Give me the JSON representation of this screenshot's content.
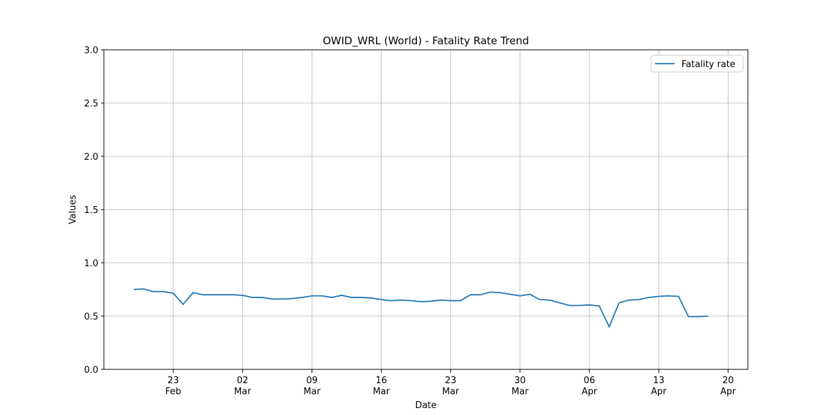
{
  "chart_data": {
    "type": "line",
    "title": "OWID_WRL (World) - Fatality Rate Trend",
    "xlabel": "Date",
    "ylabel": "Values",
    "x": [
      "02-19",
      "02-20",
      "02-21",
      "02-22",
      "02-23",
      "02-24",
      "02-25",
      "02-26",
      "02-27",
      "02-28",
      "03-01",
      "03-02",
      "03-03",
      "03-04",
      "03-05",
      "03-06",
      "03-07",
      "03-08",
      "03-09",
      "03-10",
      "03-11",
      "03-12",
      "03-13",
      "03-14",
      "03-15",
      "03-16",
      "03-17",
      "03-18",
      "03-19",
      "03-20",
      "03-21",
      "03-22",
      "03-23",
      "03-24",
      "03-25",
      "03-26",
      "03-27",
      "03-28",
      "03-29",
      "03-30",
      "03-31",
      "04-01",
      "04-02",
      "04-03",
      "04-04",
      "04-05",
      "04-06",
      "04-07",
      "04-08",
      "04-09",
      "04-10",
      "04-11",
      "04-12",
      "04-13",
      "04-14",
      "04-15",
      "04-16",
      "04-17",
      "04-18"
    ],
    "series": [
      {
        "name": "Fatality rate",
        "color": "#1f77b4",
        "values": [
          0.75,
          0.755,
          0.73,
          0.73,
          0.715,
          0.61,
          0.72,
          0.7,
          0.7,
          0.7,
          0.7,
          0.695,
          0.675,
          0.675,
          0.66,
          0.66,
          0.665,
          0.675,
          0.69,
          0.69,
          0.675,
          0.695,
          0.675,
          0.675,
          0.67,
          0.655,
          0.645,
          0.65,
          0.645,
          0.635,
          0.64,
          0.65,
          0.645,
          0.645,
          0.7,
          0.7,
          0.725,
          0.72,
          0.705,
          0.69,
          0.705,
          0.655,
          0.65,
          0.625,
          0.6,
          0.6,
          0.605,
          0.595,
          0.4,
          0.625,
          0.65,
          0.655,
          0.675,
          0.685,
          0.69,
          0.685,
          0.495,
          0.495,
          0.5
        ]
      }
    ],
    "xlim": [
      "02-16",
      "04-22"
    ],
    "xticks": [
      {
        "value": "02-23",
        "label": "23\nFeb"
      },
      {
        "value": "03-02",
        "label": "02\nMar"
      },
      {
        "value": "03-09",
        "label": "09\nMar"
      },
      {
        "value": "03-16",
        "label": "16\nMar"
      },
      {
        "value": "03-23",
        "label": "23\nMar"
      },
      {
        "value": "03-30",
        "label": "30\nMar"
      },
      {
        "value": "04-06",
        "label": "06\nApr"
      },
      {
        "value": "04-13",
        "label": "13\nApr"
      },
      {
        "value": "04-20",
        "label": "20\nApr"
      }
    ],
    "ylim": [
      0,
      3
    ],
    "yticks": [
      {
        "value": 0,
        "label": "0.0"
      },
      0.5,
      {
        "value": 1,
        "label": "1.0"
      },
      1.5,
      {
        "value": 2,
        "label": "2.0"
      },
      2.5,
      {
        "value": 3,
        "label": "3.0"
      }
    ],
    "grid": true,
    "legend": "upper right"
  }
}
